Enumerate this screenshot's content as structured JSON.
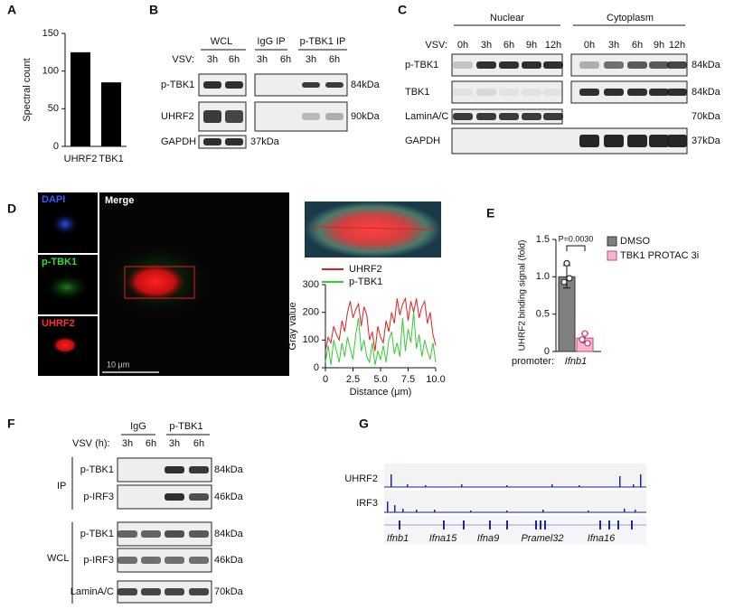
{
  "panel_labels": [
    "A",
    "B",
    "C",
    "D",
    "E",
    "F",
    "G"
  ],
  "blot_b": {
    "groups": [
      "WCL",
      "IgG IP",
      "p-TBK1 IP"
    ],
    "vsv": "VSV:",
    "lanes": [
      "3h",
      "6h",
      "3h",
      "6h",
      "3h",
      "6h"
    ],
    "rows": [
      "p-TBK1",
      "UHRF2",
      "GAPDH"
    ],
    "sizes": [
      "84kDa",
      "90kDa",
      "37kDa"
    ]
  },
  "blot_c": {
    "groups": [
      "Nuclear",
      "Cytoplasm"
    ],
    "vsv": "VSV:",
    "lanes": [
      "0h",
      "3h",
      "6h",
      "9h",
      "12h",
      "0h",
      "3h",
      "6h",
      "9h",
      "12h"
    ],
    "rows": [
      "p-TBK1",
      "TBK1",
      "LaminA/C",
      "GAPDH"
    ],
    "sizes": [
      "84kDa",
      "84kDa",
      "70kDa",
      "37kDa"
    ]
  },
  "images_d": {
    "channels": [
      "DAPI",
      "p-TBK1",
      "UHRF2"
    ],
    "merge": "Merge",
    "scale_bar": "10 μm"
  },
  "blot_f": {
    "groups": [
      "IgG",
      "p-TBK1"
    ],
    "vsv": "VSV (h):",
    "lanes": [
      "3h",
      "6h",
      "3h",
      "6h"
    ],
    "sections": [
      "IP",
      "WCL"
    ],
    "rows": [
      "p-TBK1",
      "p-IRF3",
      "p-TBK1",
      "p-IRF3",
      "LaminA/C"
    ],
    "sizes": [
      "84kDa",
      "46kDa",
      "84kDa",
      "46kDa",
      "70kDa"
    ]
  },
  "tracks_g": {
    "tracks": [
      "UHRF2",
      "IRF3"
    ],
    "genes": [
      "Ifnb1",
      "Ifna15",
      "Ifna9",
      "Pramel32",
      "Ifna16"
    ]
  },
  "chart_data": [
    {
      "type": "bar",
      "ylabel": "Spectral count",
      "categories": [
        "UHRF2",
        "TBK1"
      ],
      "values": [
        125,
        85
      ],
      "color": "#000000",
      "ylim": [
        0,
        150
      ],
      "yticks": [
        0,
        50,
        100,
        150
      ]
    },
    {
      "type": "line",
      "xlabel": "Distance (μm)",
      "ylabel": "Gray value",
      "x": [
        0,
        0.25,
        0.5,
        0.75,
        1,
        1.25,
        1.5,
        1.75,
        2,
        2.25,
        2.5,
        2.75,
        3,
        3.25,
        3.5,
        3.75,
        4,
        4.25,
        4.5,
        4.75,
        5,
        5.25,
        5.5,
        5.75,
        6,
        6.25,
        6.5,
        6.75,
        7,
        7.25,
        7.5,
        7.75,
        8,
        8.25,
        8.5,
        8.75,
        9,
        9.25,
        9.5,
        9.75,
        10
      ],
      "series": [
        {
          "name": "UHRF2",
          "color": "#e02020",
          "values": [
            60,
            110,
            90,
            150,
            120,
            100,
            170,
            130,
            200,
            240,
            180,
            210,
            230,
            150,
            220,
            190,
            100,
            130,
            60,
            150,
            110,
            90,
            170,
            130,
            200,
            160,
            250,
            190,
            230,
            250,
            170,
            240,
            200,
            250,
            180,
            220,
            240,
            160,
            200,
            120,
            80
          ]
        },
        {
          "name": "p-TBK1",
          "color": "#33cc33",
          "values": [
            20,
            80,
            10,
            100,
            60,
            20,
            90,
            40,
            110,
            70,
            30,
            120,
            180,
            60,
            100,
            40,
            20,
            90,
            10,
            60,
            30,
            80,
            20,
            100,
            130,
            50,
            90,
            40,
            180,
            60,
            140,
            90,
            200,
            70,
            120,
            40,
            100,
            60,
            30,
            90,
            20
          ]
        }
      ],
      "xlim": [
        0,
        10
      ],
      "xticks": [
        0,
        2.5,
        {
          "value": 5,
          "label": "5.0"
        },
        7.5,
        {
          "value": 10,
          "label": "10.0"
        }
      ],
      "ylim": [
        0,
        300
      ],
      "yticks": [
        0,
        100,
        200,
        300
      ]
    },
    {
      "type": "bar",
      "ylabel": "UHRF2 binding signal (fold)",
      "xlabel": "promoter:",
      "categories": [
        "Ifnb1"
      ],
      "annotation": "P=0.0030",
      "series": [
        {
          "name": "DMSO",
          "color": "#808080",
          "values": [
            1
          ],
          "errors": [
            0.15
          ],
          "points": [
            [
              1.18,
              0.93,
              0.98
            ]
          ]
        },
        {
          "name": "TBK1 PROTAC 3i",
          "color": "#f5b8c8",
          "values": [
            0.18
          ],
          "errors": [
            0.06
          ],
          "points": [
            [
              0.24,
              0.16,
              0.11
            ]
          ]
        }
      ],
      "ylim": [
        0,
        1.5
      ],
      "yticks": [
        0,
        0.5,
        {
          "value": 1,
          "label": "1.0"
        },
        1.5
      ]
    }
  ]
}
